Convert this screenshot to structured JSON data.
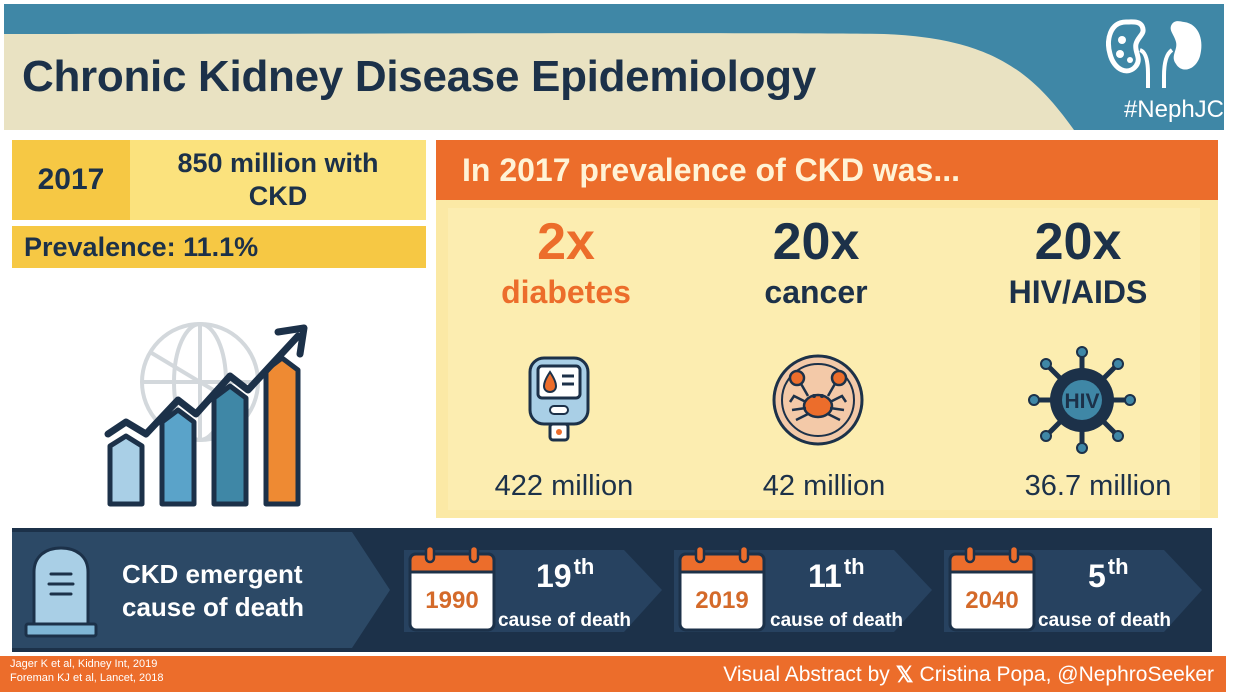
{
  "header": {
    "title": "Chronic Kidney Disease Epidemiology",
    "hashtag": "#NephJC"
  },
  "summary": {
    "year": "2017",
    "count": "850 million with CKD",
    "prevalence": "Prevalence: 11.1%"
  },
  "comparison": {
    "heading": "In 2017 prevalence of CKD was...",
    "items": [
      {
        "multiplier": "2x",
        "condition": "diabetes",
        "count": "422 million"
      },
      {
        "multiplier": "20x",
        "condition": "cancer",
        "count": "42 million"
      },
      {
        "multiplier": "20x",
        "condition": "HIV/AIDS",
        "count": "36.7 million"
      }
    ],
    "hiv_label": "HIV"
  },
  "death": {
    "label_line1": "CKD emergent",
    "label_line2": "cause of death",
    "ranks": [
      {
        "year": "1990",
        "rank": "19",
        "suffix": "th",
        "cause": "cause of death"
      },
      {
        "year": "2019",
        "rank": "11",
        "suffix": "th",
        "cause": "cause of death"
      },
      {
        "year": "2040",
        "rank": "5",
        "suffix": "th",
        "cause": "cause of death"
      }
    ]
  },
  "footer": {
    "ref1": "Jager K et al, Kidney Int, 2019",
    "ref2": "Foreman KJ et al, Lancet, 2018",
    "credit_prefix": "Visual Abstract by",
    "credit_name": "Cristina Popa, @NephroSeeker",
    "x_logo": "𝕏"
  },
  "colors": {
    "navy": "#1c3149",
    "orange": "#ec6d2b",
    "yellow": "#f6c844",
    "teal": "#3f87a6"
  }
}
